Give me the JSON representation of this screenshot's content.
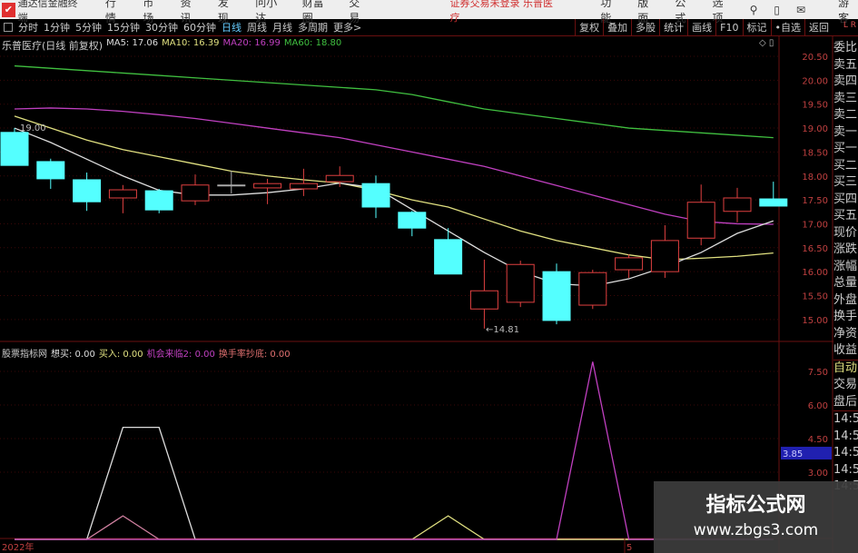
{
  "menubar": {
    "app_title": "通达信金融终端",
    "items": [
      "行情",
      "市场",
      "资讯",
      "发现",
      "问小达",
      "财富圈",
      "交易"
    ],
    "notice": "证券交易未登录  乐普医疗",
    "right_items": [
      "功能",
      "版面",
      "公式",
      "选项"
    ],
    "user": "游客"
  },
  "toolbar": {
    "periods": [
      "分时",
      "1分钟",
      "5分钟",
      "15分钟",
      "30分钟",
      "60分钟",
      "日线",
      "周线",
      "月线",
      "多周期",
      "更多>"
    ],
    "active_period": "日线",
    "tools": [
      "复权",
      "叠加",
      "多股",
      "统计",
      "画线",
      "F10",
      "标记",
      "•自选",
      "返回"
    ]
  },
  "info": {
    "title": "乐普医疗(日线 前复权)",
    "ma5": "MA5: 17.06",
    "ma10": "MA10: 16.39",
    "ma20": "MA20: 16.99",
    "ma60": "MA60: 18.80"
  },
  "sub_info": {
    "title": "股票指标网",
    "a": "想买: 0.00",
    "b": "买入: 0.00",
    "c": "机会来临2: 0.00",
    "d": "换手率抄底: 0.00"
  },
  "colors": {
    "up": "#e04040",
    "down": "#54ffff",
    "ma5": "#dddddd",
    "ma10": "#e0e080",
    "ma20": "#c040c0",
    "ma60": "#40c040"
  },
  "chart_data": {
    "type": "candlestick",
    "price_ticks": [
      "20.50",
      "20.00",
      "19.50",
      "19.00",
      "18.50",
      "18.00",
      "17.50",
      "17.00",
      "16.50",
      "16.00",
      "15.50",
      "15.00"
    ],
    "ylim": [
      14.6,
      20.9
    ],
    "candles": [
      [
        18.91,
        18.22,
        19.0,
        18.22
      ],
      [
        18.3,
        17.94,
        18.36,
        17.73
      ],
      [
        17.92,
        17.46,
        18.07,
        17.27
      ],
      [
        17.54,
        17.71,
        17.81,
        17.22
      ],
      [
        17.69,
        17.29,
        17.73,
        17.22
      ],
      [
        17.48,
        17.81,
        18.03,
        17.39
      ],
      [
        17.81,
        17.81,
        18.11,
        17.63
      ],
      [
        17.75,
        17.84,
        17.94,
        17.41
      ],
      [
        17.73,
        17.84,
        18.15,
        17.58
      ],
      [
        17.88,
        18.01,
        18.2,
        17.77
      ],
      [
        17.84,
        17.35,
        18.01,
        17.12
      ],
      [
        17.24,
        16.91,
        17.27,
        16.74
      ],
      [
        16.67,
        15.95,
        16.91,
        15.95
      ],
      [
        15.22,
        15.6,
        16.25,
        14.81
      ],
      [
        15.36,
        16.15,
        16.23,
        15.26
      ],
      [
        16.0,
        14.98,
        16.17,
        14.9
      ],
      [
        15.3,
        15.98,
        16.04,
        15.22
      ],
      [
        16.04,
        16.29,
        16.36,
        15.87
      ],
      [
        16.0,
        16.65,
        16.97,
        15.87
      ],
      [
        16.7,
        17.45,
        17.82,
        16.55
      ],
      [
        17.26,
        17.54,
        17.75,
        17.03
      ],
      [
        17.52,
        17.37,
        17.88,
        17.37
      ]
    ],
    "ma5": [
      19.0,
      18.7,
      18.35,
      18.0,
      17.7,
      17.6,
      17.6,
      17.65,
      17.73,
      17.85,
      17.75,
      17.3,
      16.85,
      16.4,
      16.0,
      15.75,
      15.7,
      15.85,
      16.1,
      16.4,
      16.8,
      17.06
    ],
    "ma10": [
      19.25,
      19.0,
      18.75,
      18.55,
      18.4,
      18.25,
      18.1,
      18.0,
      17.92,
      17.85,
      17.7,
      17.5,
      17.35,
      17.1,
      16.85,
      16.65,
      16.5,
      16.35,
      16.25,
      16.28,
      16.32,
      16.39
    ],
    "ma20": [
      19.4,
      19.42,
      19.4,
      19.35,
      19.28,
      19.2,
      19.1,
      19.0,
      18.9,
      18.8,
      18.65,
      18.5,
      18.35,
      18.2,
      18.0,
      17.8,
      17.6,
      17.4,
      17.2,
      17.05,
      17.0,
      16.99
    ],
    "ma60": [
      20.3,
      20.25,
      20.2,
      20.15,
      20.1,
      20.05,
      20.0,
      19.95,
      19.9,
      19.85,
      19.8,
      19.7,
      19.55,
      19.4,
      19.3,
      19.2,
      19.1,
      19.0,
      18.95,
      18.9,
      18.85,
      18.8
    ],
    "high_label": "19.00",
    "low_label": "←14.81",
    "sub_ticks": [
      "7.50",
      "6.00",
      "4.50",
      "3.00"
    ],
    "sub_ylim": [
      0,
      8.5
    ],
    "sub_current": "3.85",
    "sub_series": [
      {
        "color": "#dddddd",
        "values": [
          0,
          0,
          0,
          5.0,
          5.0,
          0,
          0,
          0,
          0,
          0,
          0,
          0,
          0,
          0,
          0,
          0,
          0,
          0,
          0,
          0,
          0,
          0
        ]
      },
      {
        "color": "#d080a0",
        "values": [
          0,
          0,
          0,
          1.05,
          0,
          0,
          0,
          0,
          0,
          0,
          0,
          0,
          0,
          0,
          0,
          0,
          0,
          0,
          0,
          0,
          0,
          0
        ]
      },
      {
        "color": "#e0e080",
        "values": [
          0,
          0,
          0,
          0,
          0,
          0,
          0,
          0,
          0,
          0,
          0,
          0,
          1.05,
          0,
          0,
          0,
          0,
          0,
          0,
          0,
          0,
          0
        ]
      },
      {
        "color": "#c040c0",
        "values": [
          0,
          0,
          0,
          0,
          0,
          0,
          0,
          0,
          0,
          0,
          0,
          0,
          0,
          0,
          0,
          0,
          7.93,
          0,
          0,
          0,
          0,
          0
        ]
      }
    ],
    "x_labels": [
      "2022年",
      "5"
    ]
  },
  "right_panel": {
    "labels": [
      "委比",
      "卖五",
      "卖四",
      "卖三",
      "卖二",
      "卖一",
      "买一",
      "买二",
      "买三",
      "买四",
      "买五",
      "现价",
      "涨跌",
      "涨幅",
      "总量",
      "外盘",
      "换手",
      "净资",
      "收益",
      "自动",
      "交易",
      "盘后",
      "14:5",
      "14:5",
      "14:5",
      "14:5",
      "14:5"
    ]
  },
  "watermark": {
    "line1": "指标公式网",
    "line2": "www.zbgs3.com"
  }
}
